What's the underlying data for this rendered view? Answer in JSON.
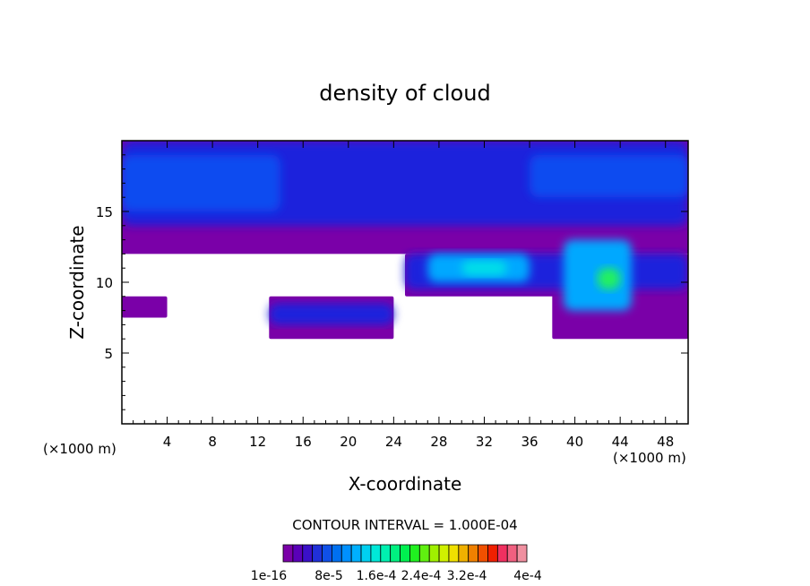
{
  "chart_data": {
    "type": "heatmap",
    "title": "density of cloud",
    "xlabel": "X-coordinate",
    "ylabel": "Z-coordinate",
    "x_unit": "(×1000 m)",
    "y_unit": "(×1000 m)",
    "xlim": [
      0,
      50
    ],
    "ylim": [
      0,
      20
    ],
    "x_ticks": [
      "4",
      "8",
      "12",
      "16",
      "20",
      "24",
      "28",
      "32",
      "36",
      "40",
      "44",
      "48"
    ],
    "y_ticks": [
      "5",
      "10",
      "15"
    ],
    "contour_interval_text": "CONTOUR INTERVAL = 1.000E-04",
    "colorbar": {
      "labels": [
        "1e-16",
        "8e-5",
        "1.6e-4",
        "2.4e-4",
        "3.2e-4",
        "4e-4"
      ],
      "colors": [
        "#7a00a8",
        "#5a00b8",
        "#3a10c8",
        "#2030d8",
        "#1050e8",
        "#0070f0",
        "#0090ff",
        "#00b0ff",
        "#00d0f0",
        "#00e8d8",
        "#00f0b0",
        "#00f080",
        "#00f050",
        "#20f020",
        "#60f010",
        "#a0f000",
        "#d0f000",
        "#f0e000",
        "#f0b000",
        "#f08000",
        "#f05000",
        "#f02000",
        "#f03060",
        "#f06080",
        "#f090a0"
      ]
    },
    "field_colors": [
      "#7a00a8",
      "#1a22dc",
      "#0a4cf0",
      "#00a8ff",
      "#00e0e8",
      "#20f060"
    ],
    "regions": [
      {
        "level": 0,
        "x": [
          0,
          50
        ],
        "z": [
          12,
          20
        ]
      },
      {
        "level": 0,
        "x": [
          25,
          50
        ],
        "z": [
          9,
          12
        ]
      },
      {
        "level": 0,
        "x": [
          0,
          4
        ],
        "z": [
          7.5,
          9
        ]
      },
      {
        "level": 0,
        "x": [
          13,
          24
        ],
        "z": [
          6,
          9
        ]
      },
      {
        "level": 0,
        "x": [
          38,
          50
        ],
        "z": [
          6,
          9.5
        ]
      },
      {
        "level": 1,
        "x": [
          0,
          50
        ],
        "z": [
          14,
          20
        ]
      },
      {
        "level": 1,
        "x": [
          13,
          24
        ],
        "z": [
          7,
          8.5
        ]
      },
      {
        "level": 1,
        "x": [
          25,
          50
        ],
        "z": [
          9.5,
          12
        ]
      },
      {
        "level": 2,
        "x": [
          0,
          14
        ],
        "z": [
          15,
          19
        ]
      },
      {
        "level": 2,
        "x": [
          36,
          50
        ],
        "z": [
          16,
          19
        ]
      },
      {
        "level": 3,
        "x": [
          27,
          36
        ],
        "z": [
          10,
          12
        ]
      },
      {
        "level": 3,
        "x": [
          39,
          45
        ],
        "z": [
          8,
          13
        ]
      },
      {
        "level": 4,
        "x": [
          30,
          34
        ],
        "z": [
          10.5,
          11.5
        ]
      },
      {
        "level": 5,
        "x": [
          42,
          44
        ],
        "z": [
          9.5,
          11
        ]
      }
    ]
  }
}
